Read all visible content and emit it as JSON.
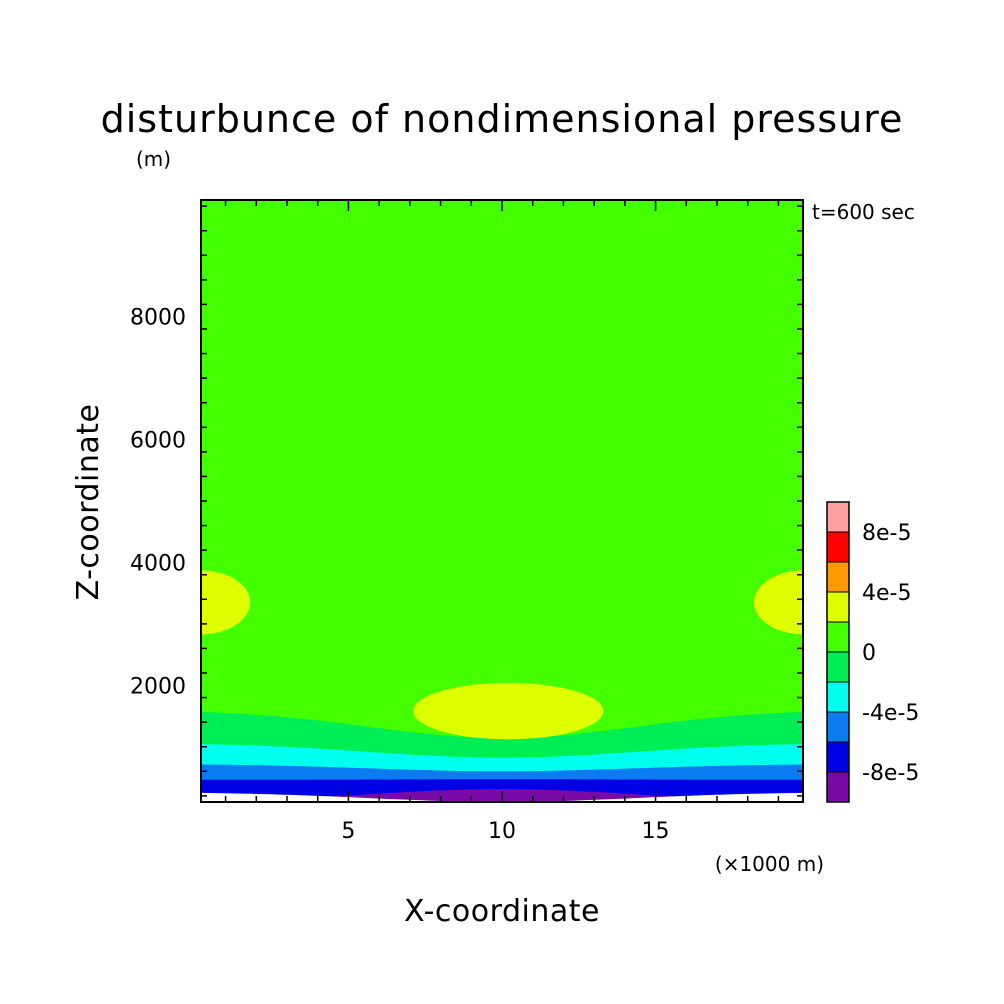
{
  "chart_data": {
    "type": "heatmap",
    "title": "disturbunce of nondimensional pressure",
    "unit_label": "(m)",
    "time_label": "t=600 sec",
    "xlabel": "X-coordinate",
    "xunit": "(×1000 m)",
    "ylabel": "Z-coordinate",
    "xlim": [
      0.2,
      19.8
    ],
    "ylim": [
      100,
      9900
    ],
    "x_ticks": [
      5,
      10,
      15
    ],
    "y_ticks": [
      2000,
      4000,
      6000,
      8000
    ],
    "grid": false,
    "colorbar": {
      "levels": [
        -0.0001,
        -8e-05,
        -6e-05,
        -4e-05,
        -2e-05,
        0,
        2e-05,
        4e-05,
        6e-05,
        8e-05,
        0.0001
      ],
      "colors": [
        "#7a0aa8",
        "#0000e6",
        "#0a7cf0",
        "#00ffee",
        "#00ee55",
        "#44ff00",
        "#ddff00",
        "#ff9900",
        "#ff0000",
        "#ffa0a0"
      ],
      "labels": [
        "-8e-5",
        "-4e-5",
        "0",
        "4e-5",
        "8e-5"
      ],
      "label_values": [
        -8e-05,
        -4e-05,
        0,
        4e-05,
        8e-05
      ]
    },
    "background_level_color": "#44ff00",
    "bands": [
      {
        "color": "#ffffff",
        "z_center": 100,
        "z_edge": 260
      },
      {
        "color": "#7a0aa8",
        "z_center": 310,
        "z_edge": 100
      },
      {
        "color": "#0000e6",
        "z_center": 470,
        "z_edge": 460
      },
      {
        "color": "#0a7cf0",
        "z_center": 600,
        "z_edge": 720
      },
      {
        "color": "#00ffee",
        "z_center": 820,
        "z_edge": 1060
      },
      {
        "color": "#00ee55",
        "z_center": 1140,
        "z_edge": 1600
      }
    ],
    "regions": [
      {
        "color": "#ddff00",
        "x_center": 10.2,
        "z_center": 1580,
        "x_radius": 3.1,
        "z_radius": 460
      },
      {
        "color": "#ddff00",
        "x_center": 0.2,
        "z_center": 3350,
        "x_radius": 1.6,
        "z_radius": 520
      },
      {
        "color": "#ddff00",
        "x_center": 19.8,
        "z_center": 3350,
        "x_radius": 1.6,
        "z_radius": 520
      }
    ]
  }
}
